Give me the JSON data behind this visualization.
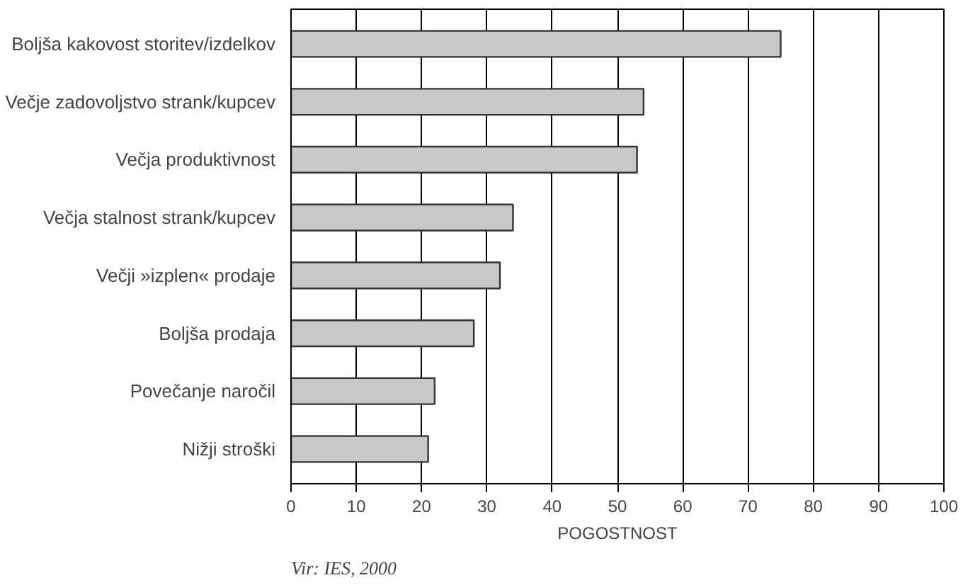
{
  "chart_data": {
    "type": "bar",
    "orientation": "horizontal",
    "categories": [
      "Boljša kakovost storitev/izdelkov",
      "Večje zadovoljstvo strank/kupcev",
      "Večja produktivnost",
      "Večja stalnost strank/kupcev",
      "Večji »izplen« prodaje",
      "Boljša prodaja",
      "Povečanje naročil",
      "Nižji stroški"
    ],
    "values": [
      75,
      54,
      53,
      34,
      32,
      28,
      22,
      21
    ],
    "color": "#c8c8c8",
    "xlim": [
      0,
      100
    ],
    "xticks": [
      0,
      10,
      20,
      30,
      40,
      50,
      60,
      70,
      80,
      90,
      100
    ],
    "xlabel": "POGOSTNOST",
    "grid": "x",
    "annotations": [
      "Vir: IES, 2000"
    ]
  }
}
